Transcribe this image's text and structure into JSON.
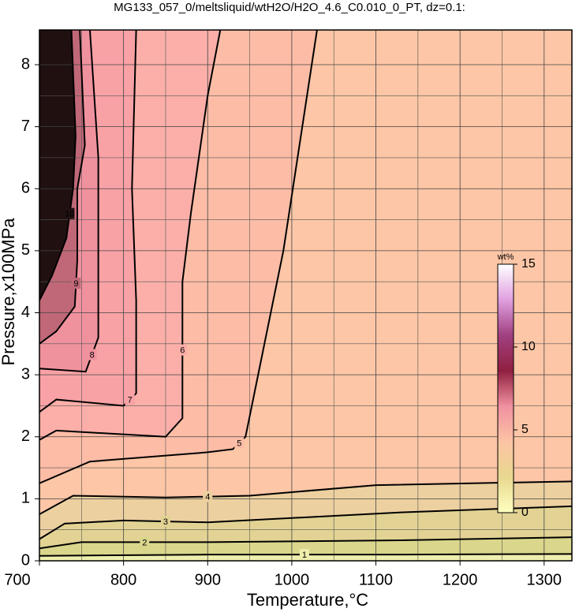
{
  "chart_data": {
    "type": "contour",
    "title": "MG133_057_0/meltsliquid/wtH2O/H2O_4.6_C0.010_0_PT, dz=0.1:",
    "x_label": "Temperature,°C",
    "y_label": "Pressure,x100MPa",
    "xlim": [
      700,
      1333
    ],
    "ylim": [
      0,
      8.56
    ],
    "xticks": [
      700,
      800,
      900,
      1000,
      1100,
      1200,
      1300
    ],
    "yticks": [
      0,
      1,
      2,
      3,
      4,
      5,
      6,
      7,
      8
    ],
    "xminor": [
      750,
      850,
      950,
      1050,
      1150,
      1250
    ],
    "yminor": [
      0.5,
      1.5,
      2.5,
      3.5,
      4.5,
      5.5,
      6.5,
      7.5
    ],
    "grid": true,
    "background": "#fdc6a6",
    "contours": [
      {
        "level": 5,
        "fill": "#fcbca6",
        "region": "upper-left",
        "points": [
          [
            700,
            1.25
          ],
          [
            760,
            1.6
          ],
          [
            900,
            1.75
          ],
          [
            930,
            1.8
          ],
          [
            945,
            2.0
          ],
          [
            960,
            3.0
          ],
          [
            990,
            5.0
          ],
          [
            1030,
            8.56
          ]
        ]
      },
      {
        "level": 6,
        "fill": "#fbafa8",
        "region": "upper-left",
        "points": [
          [
            700,
            1.95
          ],
          [
            720,
            2.1
          ],
          [
            850,
            2.0
          ],
          [
            870,
            2.3
          ],
          [
            870,
            4.5
          ],
          [
            880,
            5.6
          ],
          [
            900,
            7.5
          ],
          [
            915,
            8.56
          ]
        ]
      },
      {
        "level": 7,
        "fill": "#f8a2a6",
        "region": "upper-left",
        "points": [
          [
            700,
            2.4
          ],
          [
            720,
            2.6
          ],
          [
            800,
            2.5
          ],
          [
            815,
            2.7
          ],
          [
            815,
            4.2
          ],
          [
            810,
            6.0
          ],
          [
            815,
            8.56
          ]
        ]
      },
      {
        "level": 8,
        "fill": "#f0929e",
        "region": "upper-left",
        "points": [
          [
            700,
            3.1
          ],
          [
            755,
            3.05
          ],
          [
            770,
            3.6
          ],
          [
            770,
            6.5
          ],
          [
            760,
            8.56
          ]
        ]
      },
      {
        "level": 9,
        "fill": "#c06878",
        "region": "upper-left",
        "points": [
          [
            700,
            3.5
          ],
          [
            720,
            3.7
          ],
          [
            742,
            4.1
          ],
          [
            745,
            4.85
          ],
          [
            745,
            6.0
          ],
          [
            754,
            6.7
          ],
          [
            748,
            8.56
          ]
        ]
      },
      {
        "level": 10,
        "fill": "#201010",
        "region": "upper-left",
        "points": [
          [
            700,
            4.2
          ],
          [
            715,
            4.6
          ],
          [
            732,
            5.2
          ],
          [
            740,
            6.0
          ],
          [
            743,
            6.85
          ],
          [
            738,
            8.56
          ]
        ]
      },
      {
        "level": 4,
        "fill": "#ecd0a0",
        "region": "below",
        "points": [
          [
            700,
            0.75
          ],
          [
            740,
            1.05
          ],
          [
            850,
            1.02
          ],
          [
            950,
            1.05
          ],
          [
            1100,
            1.22
          ],
          [
            1333,
            1.28
          ]
        ]
      },
      {
        "level": 3,
        "fill": "#e2d394",
        "region": "below",
        "points": [
          [
            700,
            0.35
          ],
          [
            730,
            0.6
          ],
          [
            800,
            0.65
          ],
          [
            900,
            0.62
          ],
          [
            1130,
            0.78
          ],
          [
            1333,
            0.88
          ]
        ]
      },
      {
        "level": 2,
        "fill": "#dad68c",
        "region": "below",
        "points": [
          [
            700,
            0.2
          ],
          [
            750,
            0.3
          ],
          [
            900,
            0.3
          ],
          [
            1130,
            0.33
          ],
          [
            1333,
            0.38
          ]
        ]
      },
      {
        "level": 1,
        "fill": "#eeeeae",
        "region": "below",
        "points": [
          [
            700,
            0.08
          ],
          [
            900,
            0.1
          ],
          [
            1130,
            0.1
          ],
          [
            1333,
            0.11
          ]
        ]
      }
    ],
    "colorbar": {
      "label": "wt%",
      "lim": [
        0,
        15
      ],
      "ticks": [
        0,
        5,
        10,
        15
      ],
      "colors": [
        "#ffffc0",
        "#e8d890",
        "#fcc4a4",
        "#f090a0",
        "#902040",
        "#a04080",
        "#e0a0e0",
        "#ffffff"
      ]
    }
  }
}
